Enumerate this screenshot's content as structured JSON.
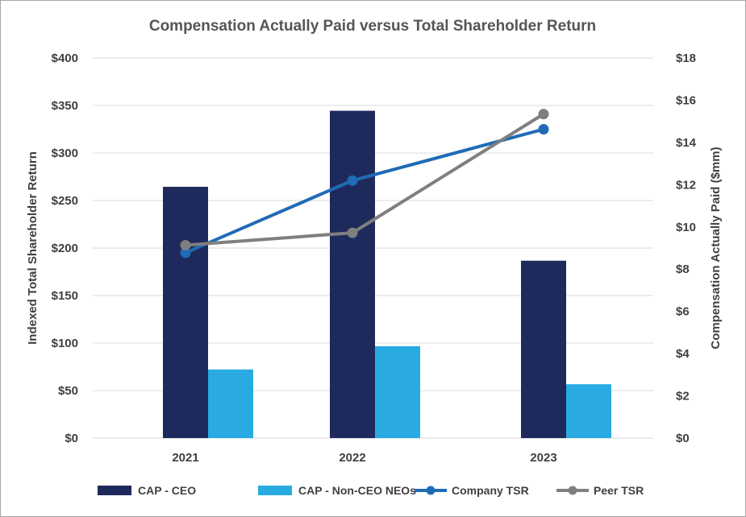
{
  "chart_data": {
    "type": "bar+line",
    "title": "Compensation Actually Paid versus Total Shareholder Return",
    "categories": [
      "2021",
      "2022",
      "2023"
    ],
    "y_left": {
      "label": "Indexed Total Shareholder Return",
      "ylim": [
        0,
        400
      ],
      "ticks": [
        "$0",
        "$50",
        "$100",
        "$150",
        "$200",
        "$250",
        "$300",
        "$350",
        "$400"
      ]
    },
    "y_right": {
      "label": "Compensation Actually Paid ($mm)",
      "ylim": [
        0,
        18
      ],
      "ticks": [
        "$0",
        "$2",
        "$4",
        "$6",
        "$8",
        "$10",
        "$12",
        "$14",
        "$16",
        "$18"
      ]
    },
    "bar_series": [
      {
        "name": "CAP - CEO",
        "axis": "right",
        "color": "#1f2a5c",
        "values": [
          11.9,
          15.5,
          8.4
        ]
      },
      {
        "name": "CAP - Non-CEO NEOs",
        "axis": "right",
        "color": "#29abe2",
        "values": [
          3.25,
          4.35,
          2.55
        ]
      }
    ],
    "line_series": [
      {
        "name": "Company TSR",
        "axis": "left",
        "color": "#1f6bb5",
        "values": [
          195,
          271,
          325
        ]
      },
      {
        "name": "Peer TSR",
        "axis": "left",
        "color": "#7f7f7f",
        "values": [
          203,
          216,
          341
        ]
      }
    ],
    "grid": true,
    "legend_position": "bottom"
  }
}
